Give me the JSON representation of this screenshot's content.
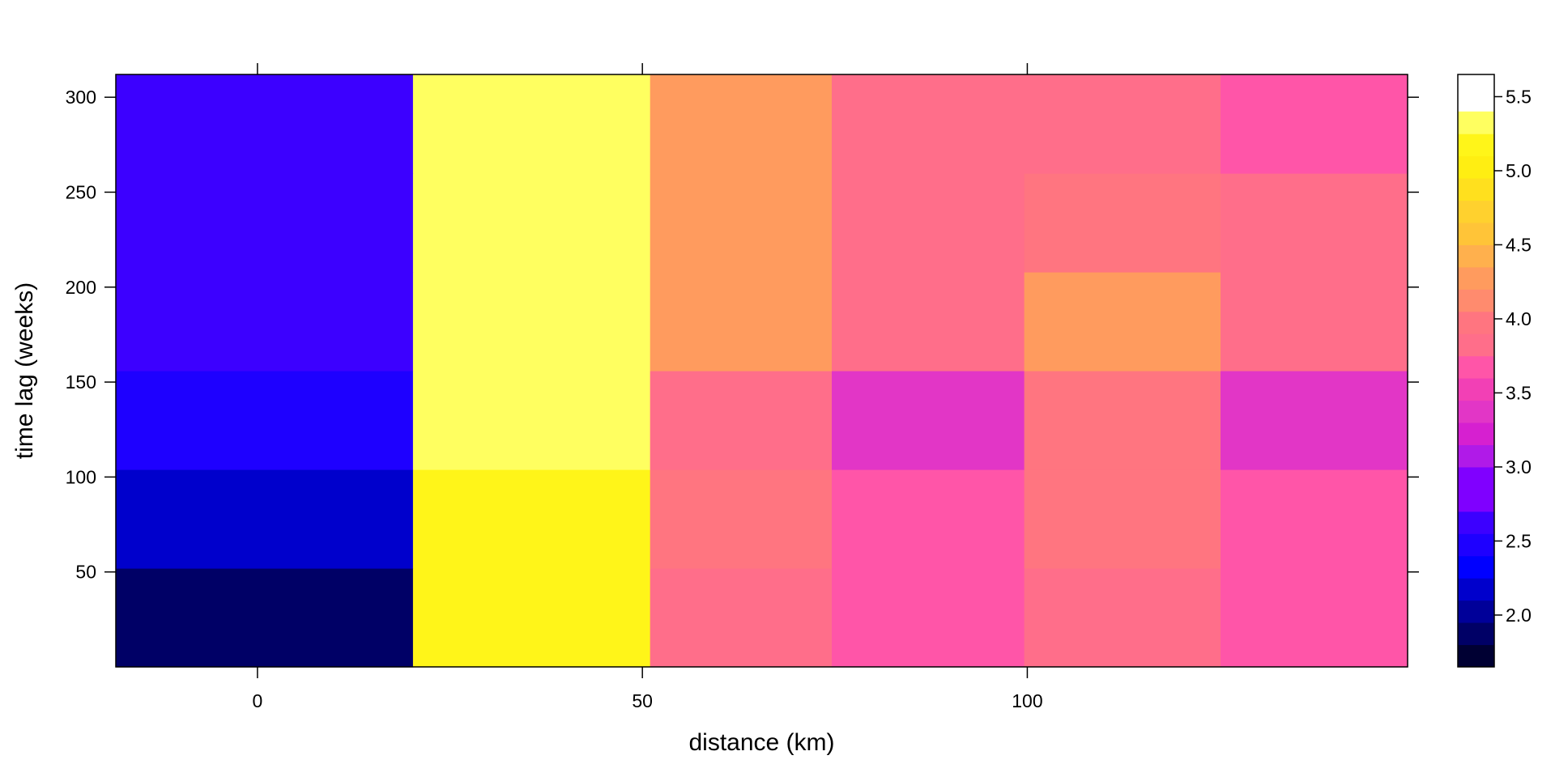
{
  "chart_data": {
    "type": "heatmap",
    "xlabel": "distance (km)",
    "ylabel": "time lag (weeks)",
    "xlim": [
      -18.4,
      149.4
    ],
    "ylim": [
      0,
      312
    ],
    "x_ticks": [
      {
        "value": 0,
        "label": "0"
      },
      {
        "value": 50,
        "label": "50"
      },
      {
        "value": 100,
        "label": "100"
      }
    ],
    "y_ticks": [
      {
        "value": 50,
        "label": "50"
      },
      {
        "value": 100,
        "label": "100"
      },
      {
        "value": 150,
        "label": "150"
      },
      {
        "value": 200,
        "label": "200"
      },
      {
        "value": 250,
        "label": "250"
      },
      {
        "value": 300,
        "label": "300"
      }
    ],
    "x_bin_edges": [
      -18.4,
      20.2,
      51.0,
      74.6,
      99.6,
      125.1,
      149.4
    ],
    "y_bin_edges": [
      0,
      52,
      104,
      156,
      208,
      260,
      312
    ],
    "values_note_rows_bottom_to_top": true,
    "values": [
      [
        1.8,
        5.1,
        3.8,
        3.6,
        3.8,
        3.6
      ],
      [
        2.2,
        5.1,
        4.0,
        3.6,
        4.0,
        3.6
      ],
      [
        2.4,
        5.4,
        3.8,
        3.3,
        4.0,
        3.3
      ],
      [
        2.6,
        5.4,
        4.2,
        3.8,
        4.2,
        3.8
      ],
      [
        2.6,
        5.4,
        4.2,
        3.8,
        4.0,
        3.8
      ],
      [
        2.6,
        5.6,
        4.2,
        3.8,
        3.8,
        3.6
      ]
    ],
    "colorkey": {
      "levels": [
        1.65,
        1.8,
        1.95,
        2.1,
        2.25,
        2.4,
        2.55,
        2.7,
        2.85,
        3.0,
        3.15,
        3.3,
        3.45,
        3.6,
        3.75,
        3.9,
        4.05,
        4.2,
        4.35,
        4.5,
        4.65,
        4.8,
        4.95,
        5.1,
        5.25,
        5.4,
        5.55,
        5.65
      ],
      "colors": [
        "#000033",
        "#000066",
        "#000099",
        "#0000CC",
        "#0000FF",
        "#1E00FF",
        "#3C00FF",
        "#7F00FF",
        "#8000FF",
        "#B01AE8",
        "#D620D0",
        "#E236C6",
        "#F240B5",
        "#FF55A8",
        "#FF6E8A",
        "#FF7580",
        "#FF8B6E",
        "#FF9B5E",
        "#FFB04D",
        "#FFC438",
        "#FFD12E",
        "#FFE01E",
        "#FFEE12",
        "#FFF519",
        "#FFFF60"
      ],
      "ticks": [
        {
          "value": 2.0,
          "label": "2.0"
        },
        {
          "value": 2.5,
          "label": "2.5"
        },
        {
          "value": 3.0,
          "label": "3.0"
        },
        {
          "value": 3.5,
          "label": "3.5"
        },
        {
          "value": 4.0,
          "label": "4.0"
        },
        {
          "value": 4.5,
          "label": "4.5"
        },
        {
          "value": 5.0,
          "label": "5.0"
        },
        {
          "value": 5.5,
          "label": "5.5"
        }
      ]
    }
  }
}
